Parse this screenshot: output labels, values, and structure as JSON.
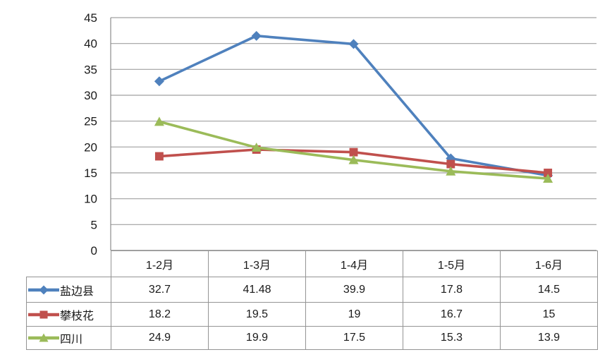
{
  "chart_data": {
    "type": "line",
    "title": "",
    "xlabel": "",
    "ylabel": "",
    "categories": [
      "1-2月",
      "1-3月",
      "1-4月",
      "1-5月",
      "1-6月"
    ],
    "series": [
      {
        "name": "盐边县",
        "color": "#4F81BD",
        "marker": "diamond",
        "values": [
          32.7,
          41.48,
          39.9,
          17.8,
          14.5
        ]
      },
      {
        "name": "攀枝花",
        "color": "#C0504D",
        "marker": "square",
        "values": [
          18.2,
          19.5,
          19,
          16.7,
          15
        ]
      },
      {
        "name": "四川",
        "color": "#9BBB59",
        "marker": "triangle",
        "values": [
          24.9,
          19.9,
          17.5,
          15.3,
          13.9
        ]
      }
    ],
    "ylim": [
      0,
      45
    ],
    "yticks": [
      0,
      5,
      10,
      15,
      20,
      25,
      30,
      35,
      40,
      45
    ],
    "grid": true,
    "legend_position": "data-table-left"
  },
  "colors": {
    "background": "#FFFFFF",
    "gridline": "#A0A0A0",
    "axis": "#8C8C8C",
    "table_border": "#949494",
    "text": "#1A1A1A",
    "frame_top": "#6B6B6B",
    "frame_side": "#959595",
    "frame_bottom": "#161616"
  }
}
